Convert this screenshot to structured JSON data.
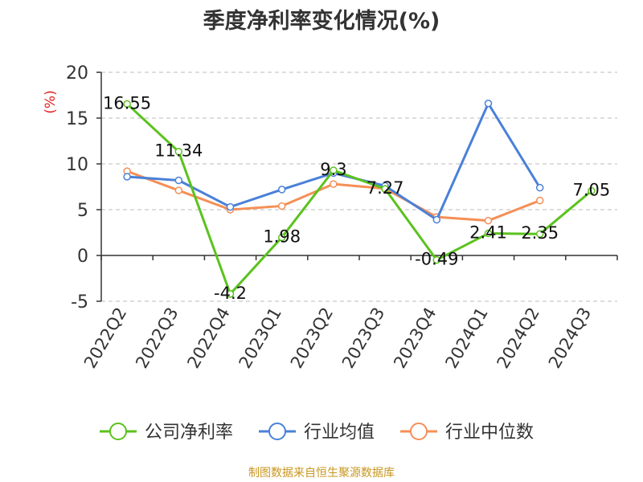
{
  "chart_data": {
    "type": "line",
    "title": "季度净利率变化情况(%)",
    "ylabel": "(%)",
    "xlabel": "",
    "ylim": [
      -5,
      20
    ],
    "yticks": [
      -5,
      0,
      5,
      10,
      15,
      20
    ],
    "categories": [
      "2022Q2",
      "2022Q3",
      "2022Q4",
      "2023Q1",
      "2023Q2",
      "2023Q3",
      "2023Q4",
      "2024Q1",
      "2024Q2",
      "2024Q3"
    ],
    "series": [
      {
        "name": "公司净利率",
        "color": "#5bc21e",
        "values": [
          16.55,
          11.34,
          -4.2,
          1.98,
          9.3,
          7.27,
          -0.49,
          2.41,
          2.35,
          7.05
        ],
        "labels": [
          "16.55",
          "11.34",
          "-4.2",
          "1.98",
          "9.3",
          "7.27",
          "-0.49",
          "2.41",
          "2.35",
          "7.05"
        ]
      },
      {
        "name": "行业均值",
        "color": "#4a80d9",
        "values": [
          8.6,
          8.2,
          5.3,
          7.2,
          9.0,
          7.6,
          3.9,
          16.6,
          7.4,
          null
        ]
      },
      {
        "name": "行业中位数",
        "color": "#f58f56",
        "values": [
          9.2,
          7.1,
          5.0,
          5.4,
          7.8,
          7.3,
          4.2,
          3.8,
          6.0,
          null
        ]
      }
    ],
    "grid": true,
    "legend": "bottom"
  },
  "source_note": "制图数据来自恒生聚源数据库",
  "colors": {
    "axis": "#333333",
    "grid": "#bbbbbb",
    "ylabel": "#e02020",
    "source": "#c8961e"
  }
}
